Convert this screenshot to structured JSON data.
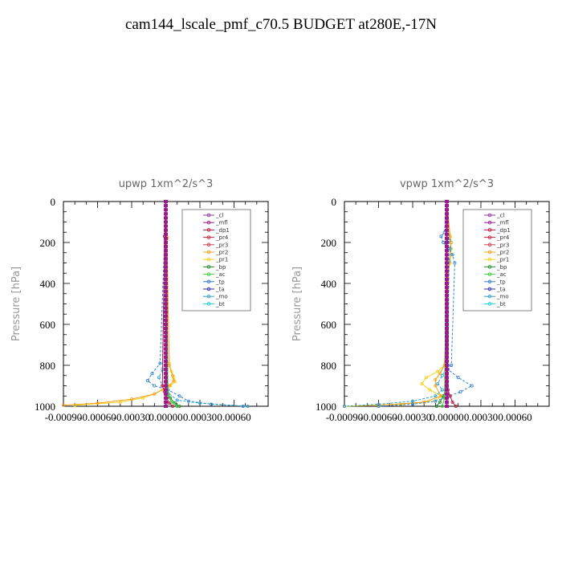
{
  "title": "cam144_lscale_pmf_c70.5  BUDGET at280E,-17N",
  "colors": {
    "_cl": "#8b3a9c",
    "_mfl": "#9b1a8a",
    "_dp1": "#b5143c",
    "_pr4": "#c81e3c",
    "_pr3": "#d04050",
    "_pr2": "#f4a01c",
    "_pr1": "#f2d21a",
    "_bp": "#1f8a2f",
    "_ac": "#3bcf3b",
    "_tp": "#2f7fd0",
    "_ta": "#3030b0",
    "_mo": "#2fa0d0",
    "_bt": "#20d0e0"
  },
  "chart_data": [
    {
      "type": "line",
      "title": "upwp   1xm^2/s^3",
      "ylabel": "Pressure  [hPa]",
      "xlim": [
        -0.0009,
        0.0009
      ],
      "ylim": [
        1000,
        0
      ],
      "xticks": [
        -0.0009,
        -0.0006,
        -0.0003,
        0.0,
        0.0003,
        0.0006
      ],
      "xtick_labels": [
        "-0.00090",
        "-0.00060",
        "-0.00030",
        "0.00000",
        "0.00030",
        "0.00060"
      ],
      "yticks": [
        0,
        200,
        400,
        600,
        800,
        1000
      ],
      "ytick_labels": [
        "0",
        "200",
        "400",
        "600",
        "800",
        "1000"
      ],
      "legend": [
        "_cl",
        "_mfl",
        "_dp1",
        "_pr4",
        "_pr3",
        "_pr2",
        "_pr1",
        "_bp",
        "_ac",
        "_tp",
        "_ta",
        "_mo",
        "_bt"
      ],
      "legend_position": "top-right",
      "series": [
        {
          "name": "_pr1",
          "x": [
            0,
            1e-05,
            3e-05,
            5e-05,
            7e-05,
            8e-05,
            4e-05,
            -3e-05,
            -0.0001,
            -0.0002,
            -0.0004,
            -0.0008
          ],
          "y": [
            0,
            170,
            790,
            830,
            860,
            880,
            900,
            920,
            940,
            960,
            980,
            995
          ]
        },
        {
          "name": "_pr2",
          "x": [
            0,
            1e-05,
            3e-05,
            6e-05,
            7e-05,
            3e-05,
            -0.0001,
            -0.0003,
            -0.0006,
            -0.0009
          ],
          "y": [
            0,
            180,
            800,
            850,
            875,
            900,
            940,
            965,
            985,
            995
          ]
        },
        {
          "name": "_tp",
          "x": [
            0,
            -1e-05,
            -5e-05,
            -0.00012,
            -0.00016,
            -0.0001,
            2e-05,
            0.00012,
            0.0002,
            0.0004,
            0.00068
          ],
          "y": [
            0,
            170,
            790,
            840,
            875,
            900,
            920,
            950,
            975,
            990,
            1000
          ]
        },
        {
          "name": "_mo",
          "x": [
            0,
            -1e-05,
            -3e-05,
            -6e-05,
            -3e-05,
            1e-05,
            0.0001,
            0.0003,
            0.00072
          ],
          "y": [
            0,
            170,
            820,
            860,
            900,
            930,
            970,
            985,
            1000
          ]
        },
        {
          "name": "_bp",
          "x": [
            0,
            1e-05,
            2e-05,
            4e-05,
            8e-05,
            0.00012
          ],
          "y": [
            0,
            900,
            940,
            960,
            985,
            1000
          ]
        },
        {
          "name": "_ac",
          "x": [
            0,
            2e-05,
            5e-05,
            0.0001
          ],
          "y": [
            0,
            950,
            980,
            1000
          ]
        },
        {
          "name": "_dp1",
          "x": [
            0,
            -1e-05,
            -3e-05,
            -1e-05,
            1e-05,
            3e-05,
            6e-05
          ],
          "y": [
            0,
            170,
            900,
            930,
            960,
            985,
            1000
          ]
        },
        {
          "name": "_mfl",
          "x": [
            0,
            0,
            0,
            0,
            0,
            0,
            0,
            0,
            0,
            0,
            0
          ],
          "y": [
            0,
            100,
            200,
            300,
            400,
            500,
            600,
            700,
            800,
            900,
            1000
          ]
        }
      ]
    },
    {
      "type": "line",
      "title": "vpwp   1xm^2/s^3",
      "ylabel": "Pressure  [hPa]",
      "xlim": [
        -0.0009,
        0.0009
      ],
      "ylim": [
        1000,
        0
      ],
      "xticks": [
        -0.0009,
        -0.0006,
        -0.0003,
        0.0,
        0.0003,
        0.0006
      ],
      "xtick_labels": [
        "-0.00090",
        "-0.00060",
        "-0.00030",
        "0.00000",
        "0.00030",
        "0.00060"
      ],
      "yticks": [
        0,
        200,
        400,
        600,
        800,
        1000
      ],
      "ytick_labels": [
        "0",
        "200",
        "400",
        "600",
        "800",
        "1000"
      ],
      "legend": [
        "_cl",
        "_mfl",
        "_dp1",
        "_pr4",
        "_pr3",
        "_pr2",
        "_pr1",
        "_bp",
        "_ac",
        "_tp",
        "_ta",
        "_mo",
        "_bt"
      ],
      "legend_position": "top-right",
      "series": [
        {
          "name": "_pr1",
          "x": [
            0,
            2e-05,
            4e-05,
            3e-05,
            1e-05,
            -2e-05,
            -8e-05,
            -0.00018,
            -0.00022,
            -0.00015,
            -5e-05,
            -0.0001,
            -0.0004,
            -0.0009
          ],
          "y": [
            0,
            160,
            230,
            300,
            340,
            800,
            830,
            860,
            890,
            920,
            950,
            975,
            990,
            1000
          ]
        },
        {
          "name": "_pr2",
          "x": [
            0,
            3e-05,
            4e-05,
            2e-05,
            -2e-05,
            -6e-05,
            -0.0001,
            -0.0001,
            -5e-05,
            -0.0002,
            -0.0006
          ],
          "y": [
            0,
            170,
            200,
            300,
            800,
            840,
            870,
            900,
            950,
            980,
            995
          ]
        },
        {
          "name": "_tp",
          "x": [
            0,
            -2e-05,
            -5e-05,
            -3e-05,
            2e-05,
            5e-05,
            7e-05,
            4e-05,
            1e-05,
            0.0001,
            0.00022,
            0.00012,
            2e-05,
            -0.0001,
            -0.0003,
            -0.0006
          ],
          "y": [
            0,
            150,
            170,
            200,
            230,
            260,
            300,
            800,
            820,
            860,
            900,
            930,
            950,
            975,
            990,
            1000
          ]
        },
        {
          "name": "_mo",
          "x": [
            0,
            2e-05,
            3e-05,
            2e-05,
            1e-05,
            -4e-05,
            -8e-05,
            -4e-05,
            -0.0001,
            -0.0003,
            -0.0006,
            -0.0009
          ],
          "y": [
            0,
            190,
            230,
            290,
            800,
            850,
            890,
            920,
            950,
            975,
            990,
            1000
          ]
        },
        {
          "name": "_bp",
          "x": [
            0,
            -1e-05,
            -3e-05,
            -6e-05,
            -9e-05
          ],
          "y": [
            0,
            920,
            950,
            980,
            1000
          ]
        },
        {
          "name": "_ac",
          "x": [
            0,
            -2e-05,
            -4e-05
          ],
          "y": [
            0,
            960,
            1000
          ]
        },
        {
          "name": "_dp1",
          "x": [
            0,
            1e-05,
            3e-05,
            5e-05,
            8e-05
          ],
          "y": [
            0,
            920,
            950,
            980,
            1000
          ]
        },
        {
          "name": "_mfl",
          "x": [
            0,
            0,
            0,
            0,
            0,
            0,
            0,
            0,
            0,
            0,
            0
          ],
          "y": [
            0,
            100,
            200,
            300,
            400,
            500,
            600,
            700,
            800,
            900,
            1000
          ]
        }
      ]
    }
  ]
}
